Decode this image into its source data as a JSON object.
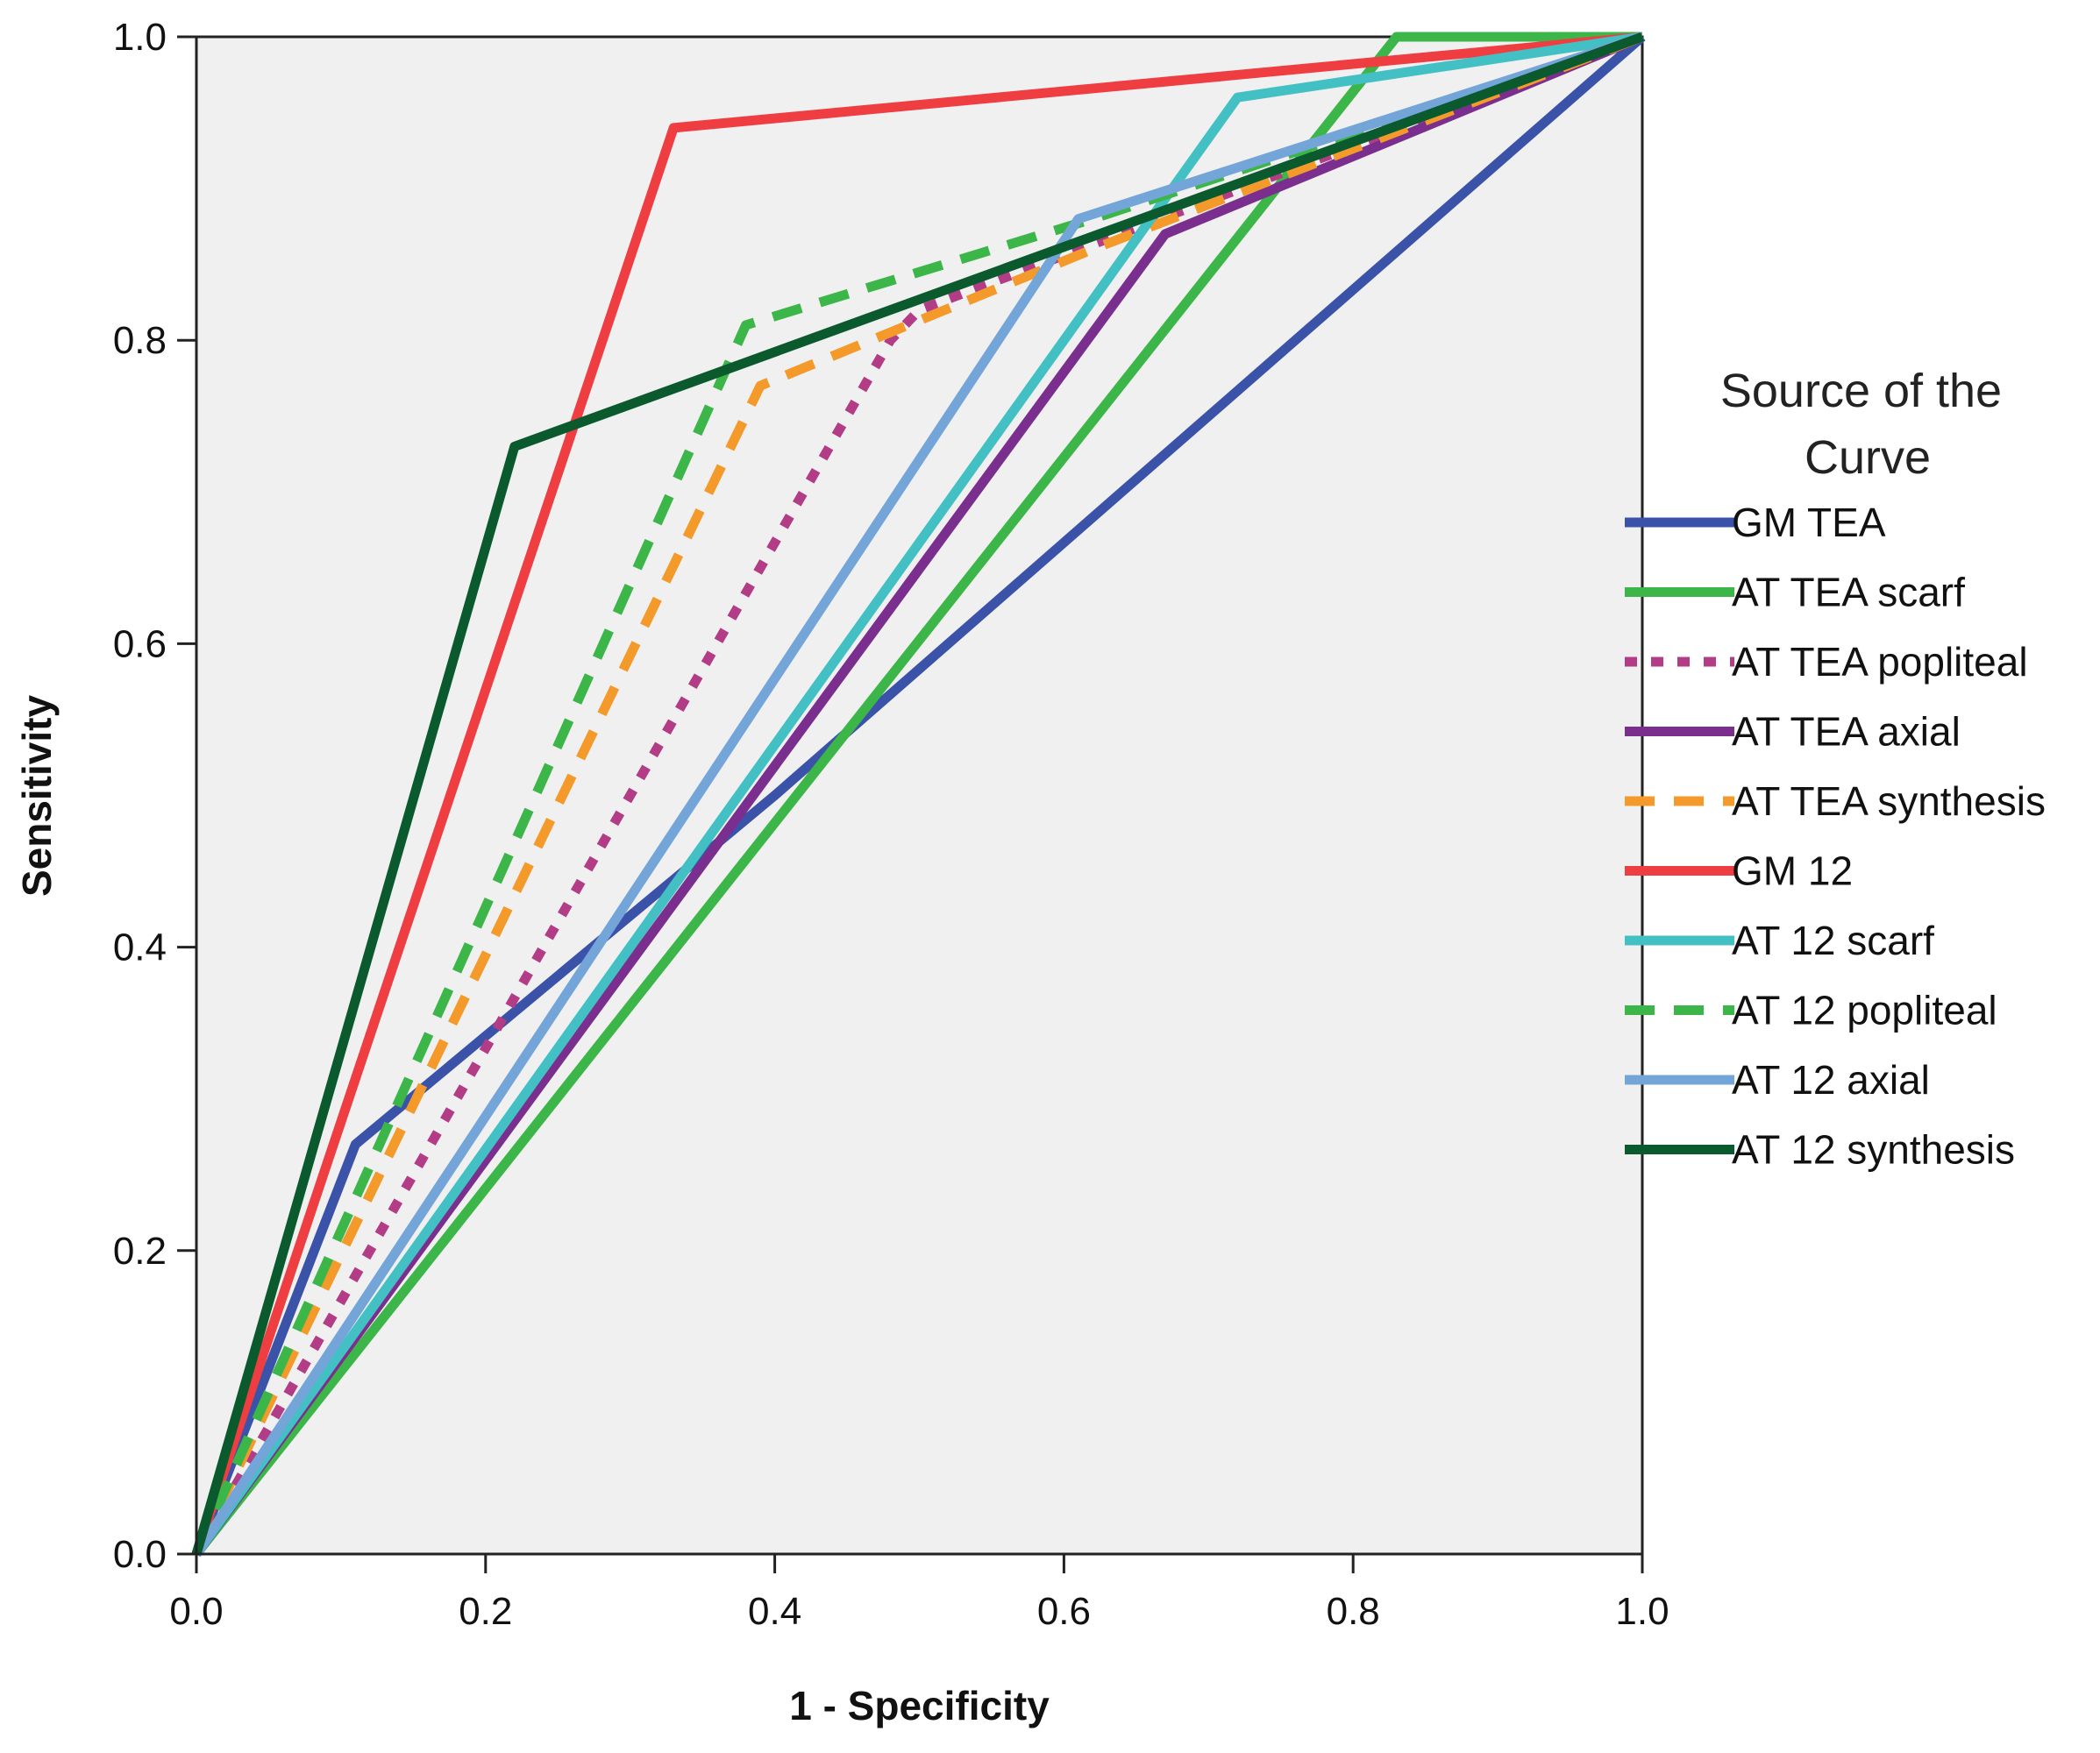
{
  "chart_data": {
    "type": "line",
    "title": "",
    "xlabel": "1 - Specificity",
    "ylabel": "Sensitivity",
    "xlim": [
      0,
      1
    ],
    "ylim": [
      0,
      1
    ],
    "x_ticks": [
      "0.0",
      "0.2",
      "0.4",
      "0.6",
      "0.8",
      "1.0"
    ],
    "y_ticks": [
      "0.0",
      "0.2",
      "0.4",
      "0.6",
      "0.8",
      "1.0"
    ],
    "grid": false,
    "background": "#f0f0f0",
    "legend": {
      "title": "Source of the Curve",
      "title_lines": [
        "Source of the",
        "Curve"
      ],
      "placement": "right"
    },
    "series": [
      {
        "name": "GM TEA",
        "color": "#3a53a8",
        "dash": "solid",
        "points": [
          [
            0,
            0
          ],
          [
            0.11,
            0.27
          ],
          [
            0.4,
            0.5
          ],
          [
            1,
            1
          ]
        ]
      },
      {
        "name": "AT TEA scarf",
        "color": "#3cb549",
        "dash": "solid",
        "points": [
          [
            0,
            0
          ],
          [
            0.83,
            1
          ],
          [
            1,
            1
          ]
        ]
      },
      {
        "name": "AT TEA popliteal",
        "color": "#b33c86",
        "dash": "dotted",
        "points": [
          [
            0,
            0
          ],
          [
            0.48,
            0.8
          ],
          [
            0.5,
            0.82
          ],
          [
            1,
            1
          ]
        ]
      },
      {
        "name": "AT TEA axial",
        "color": "#7a2f8e",
        "dash": "solid",
        "points": [
          [
            0,
            0
          ],
          [
            0.67,
            0.87
          ],
          [
            1,
            1
          ]
        ]
      },
      {
        "name": "AT TEA synthesis",
        "color": "#f39a2b",
        "dash": "dashed",
        "points": [
          [
            0,
            0
          ],
          [
            0.39,
            0.77
          ],
          [
            0.62,
            0.86
          ],
          [
            1,
            1
          ]
        ]
      },
      {
        "name": "GM 12",
        "color": "#ef3e42",
        "dash": "solid",
        "points": [
          [
            0,
            0
          ],
          [
            0.33,
            0.94
          ],
          [
            1,
            1
          ]
        ]
      },
      {
        "name": "AT 12 scarf",
        "color": "#43c0c4",
        "dash": "solid",
        "points": [
          [
            0,
            0
          ],
          [
            0.72,
            0.96
          ],
          [
            1,
            1
          ]
        ]
      },
      {
        "name": "AT 12 popliteal",
        "color": "#3cb549",
        "dash": "dashed",
        "points": [
          [
            0,
            0
          ],
          [
            0.38,
            0.81
          ],
          [
            0.62,
            0.88
          ],
          [
            1,
            1
          ]
        ]
      },
      {
        "name": "AT 12 axial",
        "color": "#74a5d8",
        "dash": "solid",
        "points": [
          [
            0,
            0
          ],
          [
            0.61,
            0.88
          ],
          [
            1,
            1
          ]
        ]
      },
      {
        "name": "AT 12 synthesis",
        "color": "#0b5a2e",
        "dash": "solid",
        "points": [
          [
            0,
            0
          ],
          [
            0.22,
            0.73
          ],
          [
            1,
            1
          ]
        ]
      }
    ]
  }
}
